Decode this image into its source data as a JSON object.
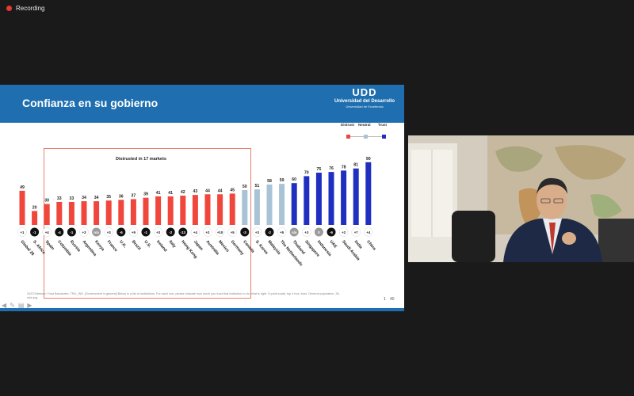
{
  "meeting": {
    "recording_label": "Recording"
  },
  "slide": {
    "title": "Confianza en su gobierno",
    "logo": {
      "mark": "UDD",
      "name": "Universidad del Desarrollo",
      "sub": "Universidad de Excelencia"
    },
    "legend": {
      "distrust": "Distrust",
      "neutral": "Neutral",
      "trust": "Trust"
    },
    "callout": "Distrusted in 17 markets",
    "footnote": "2020 Edelman Trust Barometer. TRU_INS. [Government in general] Below is a list of institutions. For each one, please indicate how much you trust that institution to do what is right. 9-point scale; top 4 box, trust. General population, 28-mkt avg.",
    "page_mark": "1",
    "page_number": "40"
  },
  "colors": {
    "distrust": "#f0463c",
    "neutral": "#a9c3d6",
    "trust": "#1f2fc0",
    "header": "#1f6fb0"
  },
  "chart_data": {
    "type": "bar",
    "categories": [
      "Global 28",
      "S. Africa",
      "Spain",
      "Colombia",
      "Russia",
      "Argentina",
      "Kenya",
      "France",
      "U.K.",
      "Brazil",
      "U.S.",
      "Ireland",
      "Italy",
      "Hong Kong",
      "Japan",
      "Australia",
      "Mexico",
      "Germany",
      "Canada",
      "S. Korea",
      "Malaysia",
      "The Netherlands",
      "Thailand",
      "Singapore",
      "Indonesia",
      "UAE",
      "Saudi Arabia",
      "India",
      "China"
    ],
    "values": [
      49,
      20,
      30,
      33,
      33,
      34,
      34,
      35,
      36,
      37,
      39,
      41,
      41,
      42,
      43,
      44,
      44,
      45,
      50,
      51,
      58,
      59,
      60,
      70,
      75,
      76,
      78,
      81,
      90
    ],
    "changes": [
      "+1",
      "-1",
      "+4",
      "-4",
      "-1",
      "+3",
      "n/a",
      "+3",
      "-6",
      "+9",
      "-1",
      "+3",
      "-2",
      "-13",
      "+4",
      "+2",
      "+10",
      "+5",
      "-3",
      "+3",
      "-2",
      "+5",
      "n/a",
      "+3",
      "0",
      "-6",
      "+2",
      "+7",
      "+4"
    ],
    "levels": [
      "distrust",
      "distrust",
      "distrust",
      "distrust",
      "distrust",
      "distrust",
      "distrust",
      "distrust",
      "distrust",
      "distrust",
      "distrust",
      "distrust",
      "distrust",
      "distrust",
      "distrust",
      "distrust",
      "distrust",
      "distrust",
      "neutral",
      "neutral",
      "neutral",
      "neutral",
      "trust",
      "trust",
      "trust",
      "trust",
      "trust",
      "trust",
      "trust"
    ],
    "ylim": [
      0,
      100
    ]
  }
}
